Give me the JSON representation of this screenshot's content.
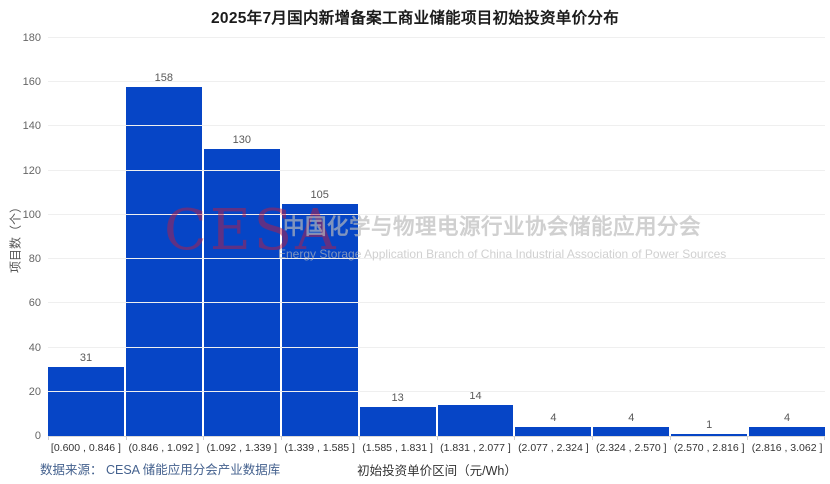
{
  "chart_data": {
    "type": "bar",
    "title": "2025年7月国内新增备案工商业储能项目初始投资单价分布",
    "categories": [
      "[0.600 , 0.846 ]",
      "(0.846 , 1.092 ]",
      "(1.092 , 1.339 ]",
      "(1.339 , 1.585 ]",
      "(1.585 , 1.831 ]",
      "(1.831 , 2.077 ]",
      "(2.077 , 2.324 ]",
      "(2.324 , 2.570 ]",
      "(2.570 , 2.816 ]",
      "(2.816 , 3.062 ]"
    ],
    "values": [
      31,
      158,
      130,
      105,
      13,
      14,
      4,
      4,
      1,
      4
    ],
    "xlabel": "初始投资单价区间（元/Wh）",
    "ylabel": "项目数（个）",
    "ylim": [
      0,
      180
    ],
    "ytick_interval": 20,
    "grid": true,
    "legend": "none",
    "bar_color": "#0645c6"
  },
  "watermark": {
    "cesa": "CESA",
    "cn": "中国化学与物理电源行业协会储能应用分会",
    "en": "Energy Storage Application Branch of China Industrial Association of Power Sources"
  },
  "footer": {
    "source": "数据来源： CESA 储能应用分会产业数据库"
  },
  "colors": {
    "bar": "#0645c6",
    "gridline": "#efefef",
    "axis_line": "#d9d9d9",
    "title_text": "#1b1b1b",
    "tick_text": "#666666",
    "value_label_text": "#595959",
    "source_text": "#44618e",
    "watermark_red": "rgba(193,28,60,0.48)",
    "watermark_gray": "rgba(186,186,186,0.68)"
  }
}
